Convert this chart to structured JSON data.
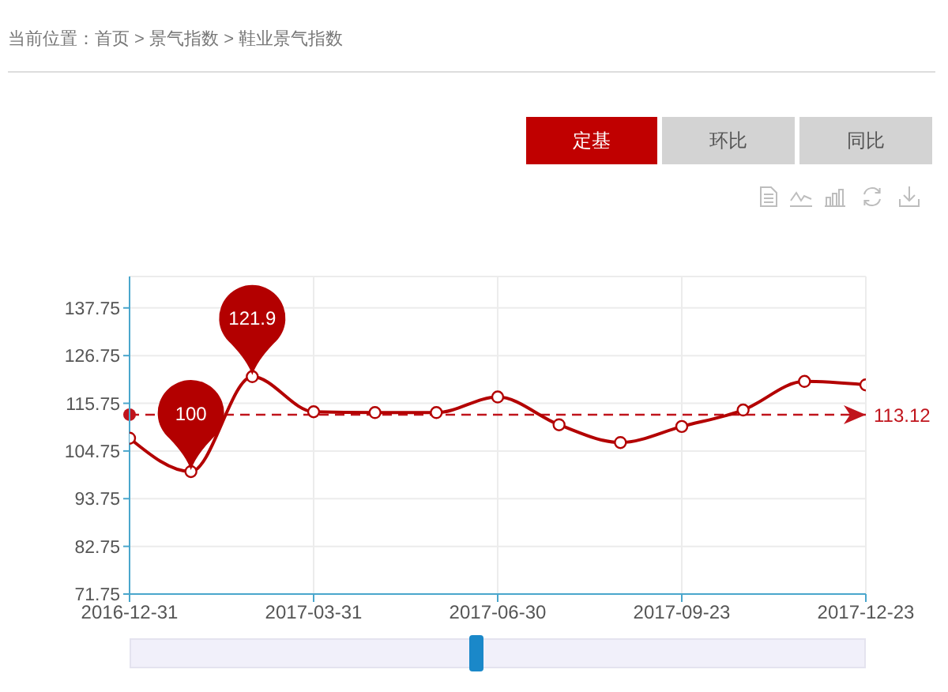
{
  "chart_data": {
    "type": "line",
    "title": "当前位置：首页 > 景气指数 > 鞋业景气指数",
    "annotations": [
      "定基",
      "环比",
      "同比"
    ],
    "categories": [
      "2016-12-31",
      null,
      null,
      "2017-03-31",
      null,
      null,
      "2017-06-30",
      null,
      null,
      "2017-09-23",
      null,
      null,
      "2017-12-23"
    ],
    "values": [
      107.7,
      100,
      121.9,
      113.8,
      113.6,
      113.6,
      117.2,
      110.8,
      106.7,
      110.4,
      114.2,
      120.8,
      120.0
    ],
    "value_labels": [
      null,
      "100",
      "121.9",
      null,
      null,
      null,
      null,
      null,
      null,
      null,
      null,
      null,
      null
    ],
    "color": "#b30000",
    "ylim": [
      71.75,
      145
    ],
    "yticks": [
      71.75,
      82.75,
      93.75,
      104.75,
      115.75,
      126.75,
      137.75
    ],
    "grid": true,
    "marker": "circle",
    "ref_lines": [
      {
        "axis": "y",
        "value": 113.12,
        "label": "113.12",
        "color": "#c0141c",
        "line_style": "dashed"
      }
    ]
  }
}
